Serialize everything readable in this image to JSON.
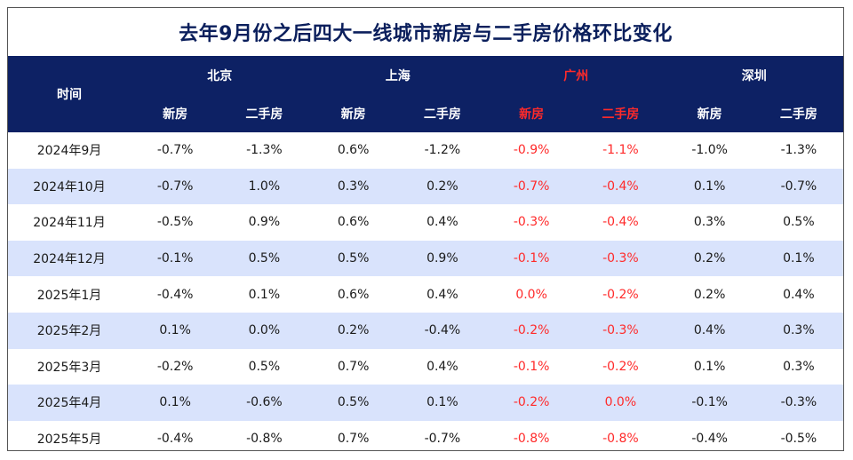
{
  "title": "去年9月份之后四大一线城市新房与二手房价格环比变化",
  "colors": {
    "header_bg": "#0d2164",
    "alt_row": "#d9e3fc",
    "highlight": "#ff2a2a",
    "title": "#0b1f5c"
  },
  "table": {
    "time_header": "时间",
    "cities": [
      {
        "name": "北京",
        "highlight": false
      },
      {
        "name": "上海",
        "highlight": false
      },
      {
        "name": "广州",
        "highlight": true
      },
      {
        "name": "深圳",
        "highlight": false
      }
    ],
    "subheaders": [
      "新房",
      "二手房"
    ],
    "rows": [
      {
        "time": "2024年9月",
        "values": [
          "-0.7%",
          "-1.3%",
          "0.6%",
          "-1.2%",
          "-0.9%",
          "-1.1%",
          "-1.0%",
          "-1.3%"
        ]
      },
      {
        "time": "2024年10月",
        "values": [
          "-0.7%",
          "1.0%",
          "0.3%",
          "0.2%",
          "-0.7%",
          "-0.4%",
          "0.1%",
          "-0.7%"
        ]
      },
      {
        "time": "2024年11月",
        "values": [
          "-0.5%",
          "0.9%",
          "0.6%",
          "0.4%",
          "-0.3%",
          "-0.4%",
          "0.3%",
          "0.5%"
        ]
      },
      {
        "time": "2024年12月",
        "values": [
          "-0.1%",
          "0.5%",
          "0.5%",
          "0.9%",
          "-0.1%",
          "-0.3%",
          "0.2%",
          "0.1%"
        ]
      },
      {
        "time": "2025年1月",
        "values": [
          "-0.4%",
          "0.1%",
          "0.6%",
          "0.4%",
          "0.0%",
          "-0.2%",
          "0.2%",
          "0.4%"
        ]
      },
      {
        "time": "2025年2月",
        "values": [
          "0.1%",
          "0.0%",
          "0.2%",
          "-0.4%",
          "-0.2%",
          "-0.3%",
          "0.4%",
          "0.3%"
        ]
      },
      {
        "time": "2025年3月",
        "values": [
          "-0.2%",
          "0.5%",
          "0.7%",
          "0.4%",
          "-0.1%",
          "-0.2%",
          "0.1%",
          "0.3%"
        ]
      },
      {
        "time": "2025年4月",
        "values": [
          "0.1%",
          "-0.6%",
          "0.5%",
          "0.1%",
          "-0.2%",
          "0.0%",
          "-0.1%",
          "-0.3%"
        ]
      },
      {
        "time": "2025年5月",
        "values": [
          "-0.4%",
          "-0.8%",
          "0.7%",
          "-0.7%",
          "-0.8%",
          "-0.8%",
          "-0.4%",
          "-0.5%"
        ]
      }
    ]
  },
  "chart_data": {
    "type": "table",
    "title": "去年9月份之后四大一线城市新房与二手房价格环比变化",
    "columns": [
      "时间",
      "北京 新房",
      "北京 二手房",
      "上海 新房",
      "上海 二手房",
      "广州 新房",
      "广州 二手房",
      "深圳 新房",
      "深圳 二手房"
    ],
    "categories": [
      "2024年9月",
      "2024年10月",
      "2024年11月",
      "2024年12月",
      "2025年1月",
      "2025年2月",
      "2025年3月",
      "2025年4月",
      "2025年5月"
    ],
    "series": [
      {
        "name": "北京 新房",
        "values": [
          -0.7,
          -0.7,
          -0.5,
          -0.1,
          -0.4,
          0.1,
          -0.2,
          0.1,
          -0.4
        ]
      },
      {
        "name": "北京 二手房",
        "values": [
          -1.3,
          1.0,
          0.9,
          0.5,
          0.1,
          0.0,
          0.5,
          -0.6,
          -0.8
        ]
      },
      {
        "name": "上海 新房",
        "values": [
          0.6,
          0.3,
          0.6,
          0.5,
          0.6,
          0.2,
          0.7,
          0.5,
          0.7
        ]
      },
      {
        "name": "上海 二手房",
        "values": [
          -1.2,
          0.2,
          0.4,
          0.9,
          0.4,
          -0.4,
          0.4,
          0.1,
          -0.7
        ]
      },
      {
        "name": "广州 新房",
        "values": [
          -0.9,
          -0.7,
          -0.3,
          -0.1,
          0.0,
          -0.2,
          -0.1,
          -0.2,
          -0.8
        ]
      },
      {
        "name": "广州 二手房",
        "values": [
          -1.1,
          -0.4,
          -0.4,
          -0.3,
          -0.2,
          -0.3,
          -0.2,
          0.0,
          -0.8
        ]
      },
      {
        "name": "深圳 新房",
        "values": [
          -1.0,
          0.1,
          0.3,
          0.2,
          0.2,
          0.4,
          0.1,
          -0.1,
          -0.4
        ]
      },
      {
        "name": "深圳 二手房",
        "values": [
          -1.3,
          -0.7,
          0.5,
          0.1,
          0.4,
          0.3,
          0.3,
          -0.3,
          -0.5
        ]
      }
    ]
  }
}
